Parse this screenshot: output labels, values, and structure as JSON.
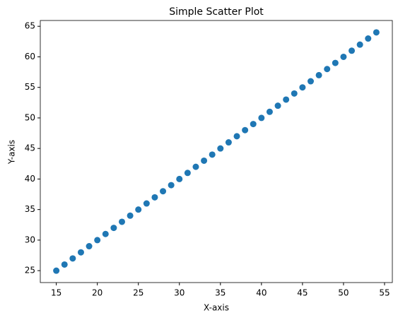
{
  "chart_data": {
    "type": "scatter",
    "title": "Simple Scatter Plot",
    "x_label": "X-axis",
    "y_label": "Y-axis",
    "x": [
      15,
      16,
      17,
      18,
      19,
      20,
      21,
      22,
      23,
      24,
      25,
      26,
      27,
      28,
      29,
      30,
      31,
      32,
      33,
      34,
      35,
      36,
      37,
      38,
      39,
      40,
      41,
      42,
      43,
      44,
      45,
      46,
      47,
      48,
      49,
      50,
      51,
      52,
      53,
      54
    ],
    "values": [
      25,
      26,
      27,
      28,
      29,
      30,
      31,
      32,
      33,
      34,
      35,
      36,
      37,
      38,
      39,
      40,
      41,
      42,
      43,
      44,
      45,
      46,
      47,
      48,
      49,
      50,
      51,
      52,
      53,
      54,
      55,
      56,
      57,
      58,
      59,
      60,
      61,
      62,
      63,
      64
    ],
    "color": "#1f77b4",
    "xlim": [
      13.05,
      55.95
    ],
    "xticks": [
      15,
      20,
      25,
      30,
      35,
      40,
      45,
      50,
      55
    ],
    "ylim": [
      23.05,
      65.95
    ],
    "yticks": [
      25,
      30,
      35,
      40,
      45,
      50,
      55,
      60,
      65
    ],
    "grid": false
  }
}
